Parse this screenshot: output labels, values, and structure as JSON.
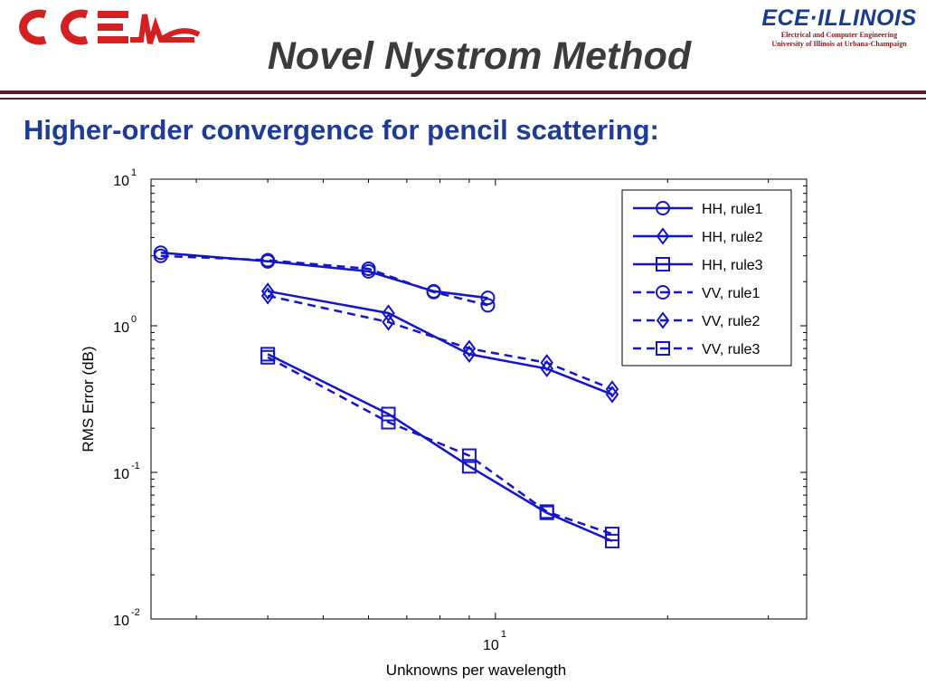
{
  "header": {
    "logo_left": "CCEM",
    "logo_right_brand": "ECE·ILLINOIS",
    "logo_right_dept": "Electrical and Computer Engineering",
    "logo_right_univ": "University of Illinois at Urbana-Champaign",
    "title": "Novel Nystrom Method"
  },
  "subtitle": "Higher-order convergence for pencil scattering:",
  "colors": {
    "series": "#1414c8",
    "title": "#3b3b3b",
    "subtitle": "#1e3c96",
    "rule": "#5e1a2a",
    "logo_red": "#d42020"
  },
  "chart_data": {
    "type": "line",
    "xscale": "log",
    "yscale": "log",
    "xlabel": "Unknowns per wavelength",
    "ylabel": "RMS Error (dB)",
    "xlim": [
      2.5,
      35
    ],
    "ylim": [
      0.01,
      10
    ],
    "x_tick_label": {
      "base": "10",
      "exp": "1",
      "value": 10
    },
    "y_tick_labels": [
      {
        "base": "10",
        "exp": "1",
        "value": 10
      },
      {
        "base": "10",
        "exp": "0",
        "value": 1
      },
      {
        "base": "10",
        "exp": "-1",
        "value": 0.1
      },
      {
        "base": "10",
        "exp": "-2",
        "value": 0.01
      }
    ],
    "grid": false,
    "legend_position": "top-right",
    "series": [
      {
        "name": "HH, rule1",
        "marker": "circle",
        "dash": false,
        "x": [
          2.6,
          4.0,
          6.0,
          7.8,
          9.7
        ],
        "y": [
          3.15,
          2.75,
          2.35,
          1.72,
          1.55
        ]
      },
      {
        "name": "HH, rule2",
        "marker": "diamond",
        "dash": false,
        "x": [
          4.0,
          6.5,
          9.0,
          12.3,
          16.0
        ],
        "y": [
          1.72,
          1.22,
          0.64,
          0.51,
          0.34
        ]
      },
      {
        "name": "HH, rule3",
        "marker": "square",
        "dash": false,
        "x": [
          4.0,
          6.5,
          9.0,
          12.3,
          16.0
        ],
        "y": [
          0.64,
          0.25,
          0.11,
          0.053,
          0.034
        ]
      },
      {
        "name": "VV, rule1",
        "marker": "circle",
        "dash": true,
        "x": [
          2.6,
          4.0,
          6.0,
          7.8,
          9.7
        ],
        "y": [
          3.0,
          2.8,
          2.45,
          1.7,
          1.38
        ]
      },
      {
        "name": "VV, rule2",
        "marker": "diamond",
        "dash": true,
        "x": [
          4.0,
          6.5,
          9.0,
          12.3,
          16.0
        ],
        "y": [
          1.6,
          1.06,
          0.7,
          0.56,
          0.37
        ]
      },
      {
        "name": "VV, rule3",
        "marker": "square",
        "dash": true,
        "x": [
          4.0,
          6.5,
          9.0,
          12.3,
          16.0
        ],
        "y": [
          0.61,
          0.22,
          0.13,
          0.054,
          0.038
        ]
      }
    ]
  }
}
